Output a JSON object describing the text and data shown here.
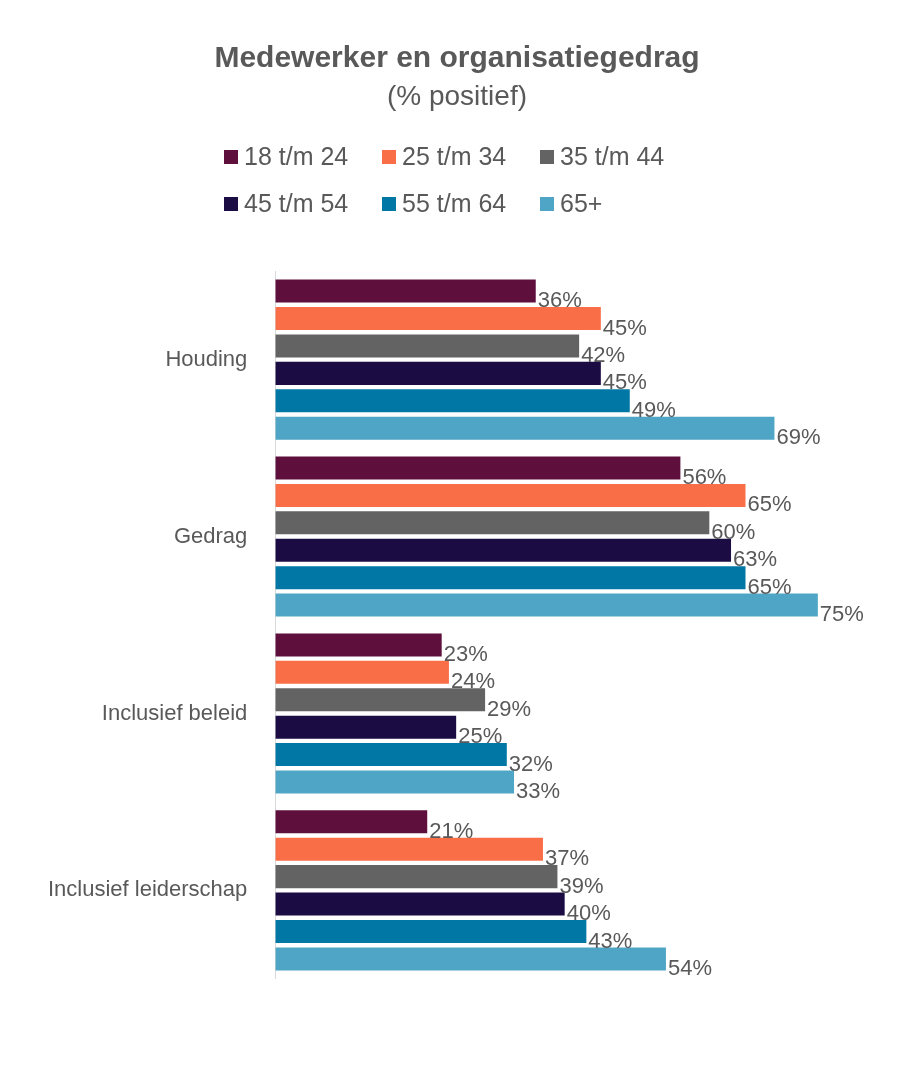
{
  "chart_data": {
    "type": "bar",
    "orientation": "horizontal",
    "title": "Medewerker en organisatiegedrag",
    "subtitle": "(% positief)",
    "legend": "top",
    "data_labels": true,
    "categories": [
      "Houding",
      "Gedrag",
      "Inclusief beleid",
      "Inclusief leiderschap"
    ],
    "series": [
      {
        "name": "18 t/m 24",
        "color": "#5e0f3c",
        "values": [
          36,
          56,
          23,
          21
        ],
        "value_labels": [
          "36%",
          "56%",
          "23%",
          "21%"
        ]
      },
      {
        "name": "25 t/m 34",
        "color": "#f96e46",
        "values": [
          45,
          65,
          24,
          37
        ],
        "value_labels": [
          "45%",
          "65%",
          "24%",
          "37%"
        ]
      },
      {
        "name": "35 t/m 44",
        "color": "#636363",
        "values": [
          42,
          60,
          29,
          39
        ],
        "value_labels": [
          "42%",
          "60%",
          "29%",
          "39%"
        ]
      },
      {
        "name": "45 t/m 54",
        "color": "#1b0c44",
        "values": [
          45,
          63,
          25,
          40
        ],
        "value_labels": [
          "45%",
          "63%",
          "25%",
          "40%"
        ]
      },
      {
        "name": "55 t/m 64",
        "color": "#0077a4",
        "values": [
          49,
          65,
          32,
          43
        ],
        "value_labels": [
          "49%",
          "65%",
          "32%",
          "43%"
        ]
      },
      {
        "name": "65+",
        "color": "#4ea5c6",
        "values": [
          69,
          75,
          33,
          54
        ],
        "value_labels": [
          "69%",
          "75%",
          "33%",
          "54%"
        ]
      }
    ]
  }
}
